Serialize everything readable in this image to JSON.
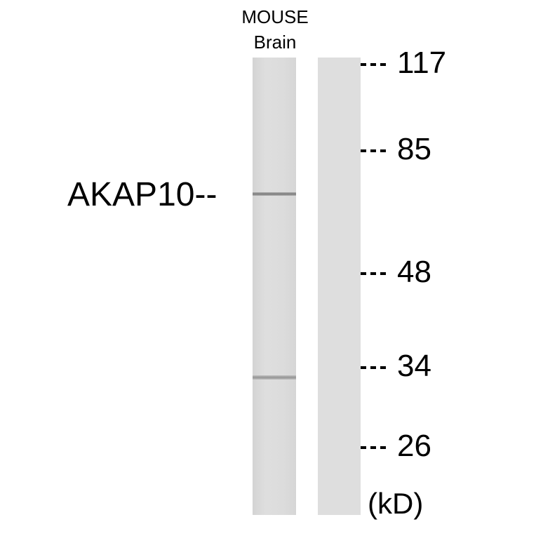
{
  "sample": {
    "line1": "MOUSE",
    "line2": "Brain"
  },
  "protein_label": "AKAP10--",
  "markers": [
    {
      "label": "117"
    },
    {
      "label": "85"
    },
    {
      "label": "48"
    },
    {
      "label": "34"
    },
    {
      "label": "26"
    }
  ],
  "unit": "(kD)",
  "lanes": [
    {
      "bands": [
        "AKAP10",
        "~34 kD band"
      ]
    },
    {
      "bands": []
    }
  ]
}
